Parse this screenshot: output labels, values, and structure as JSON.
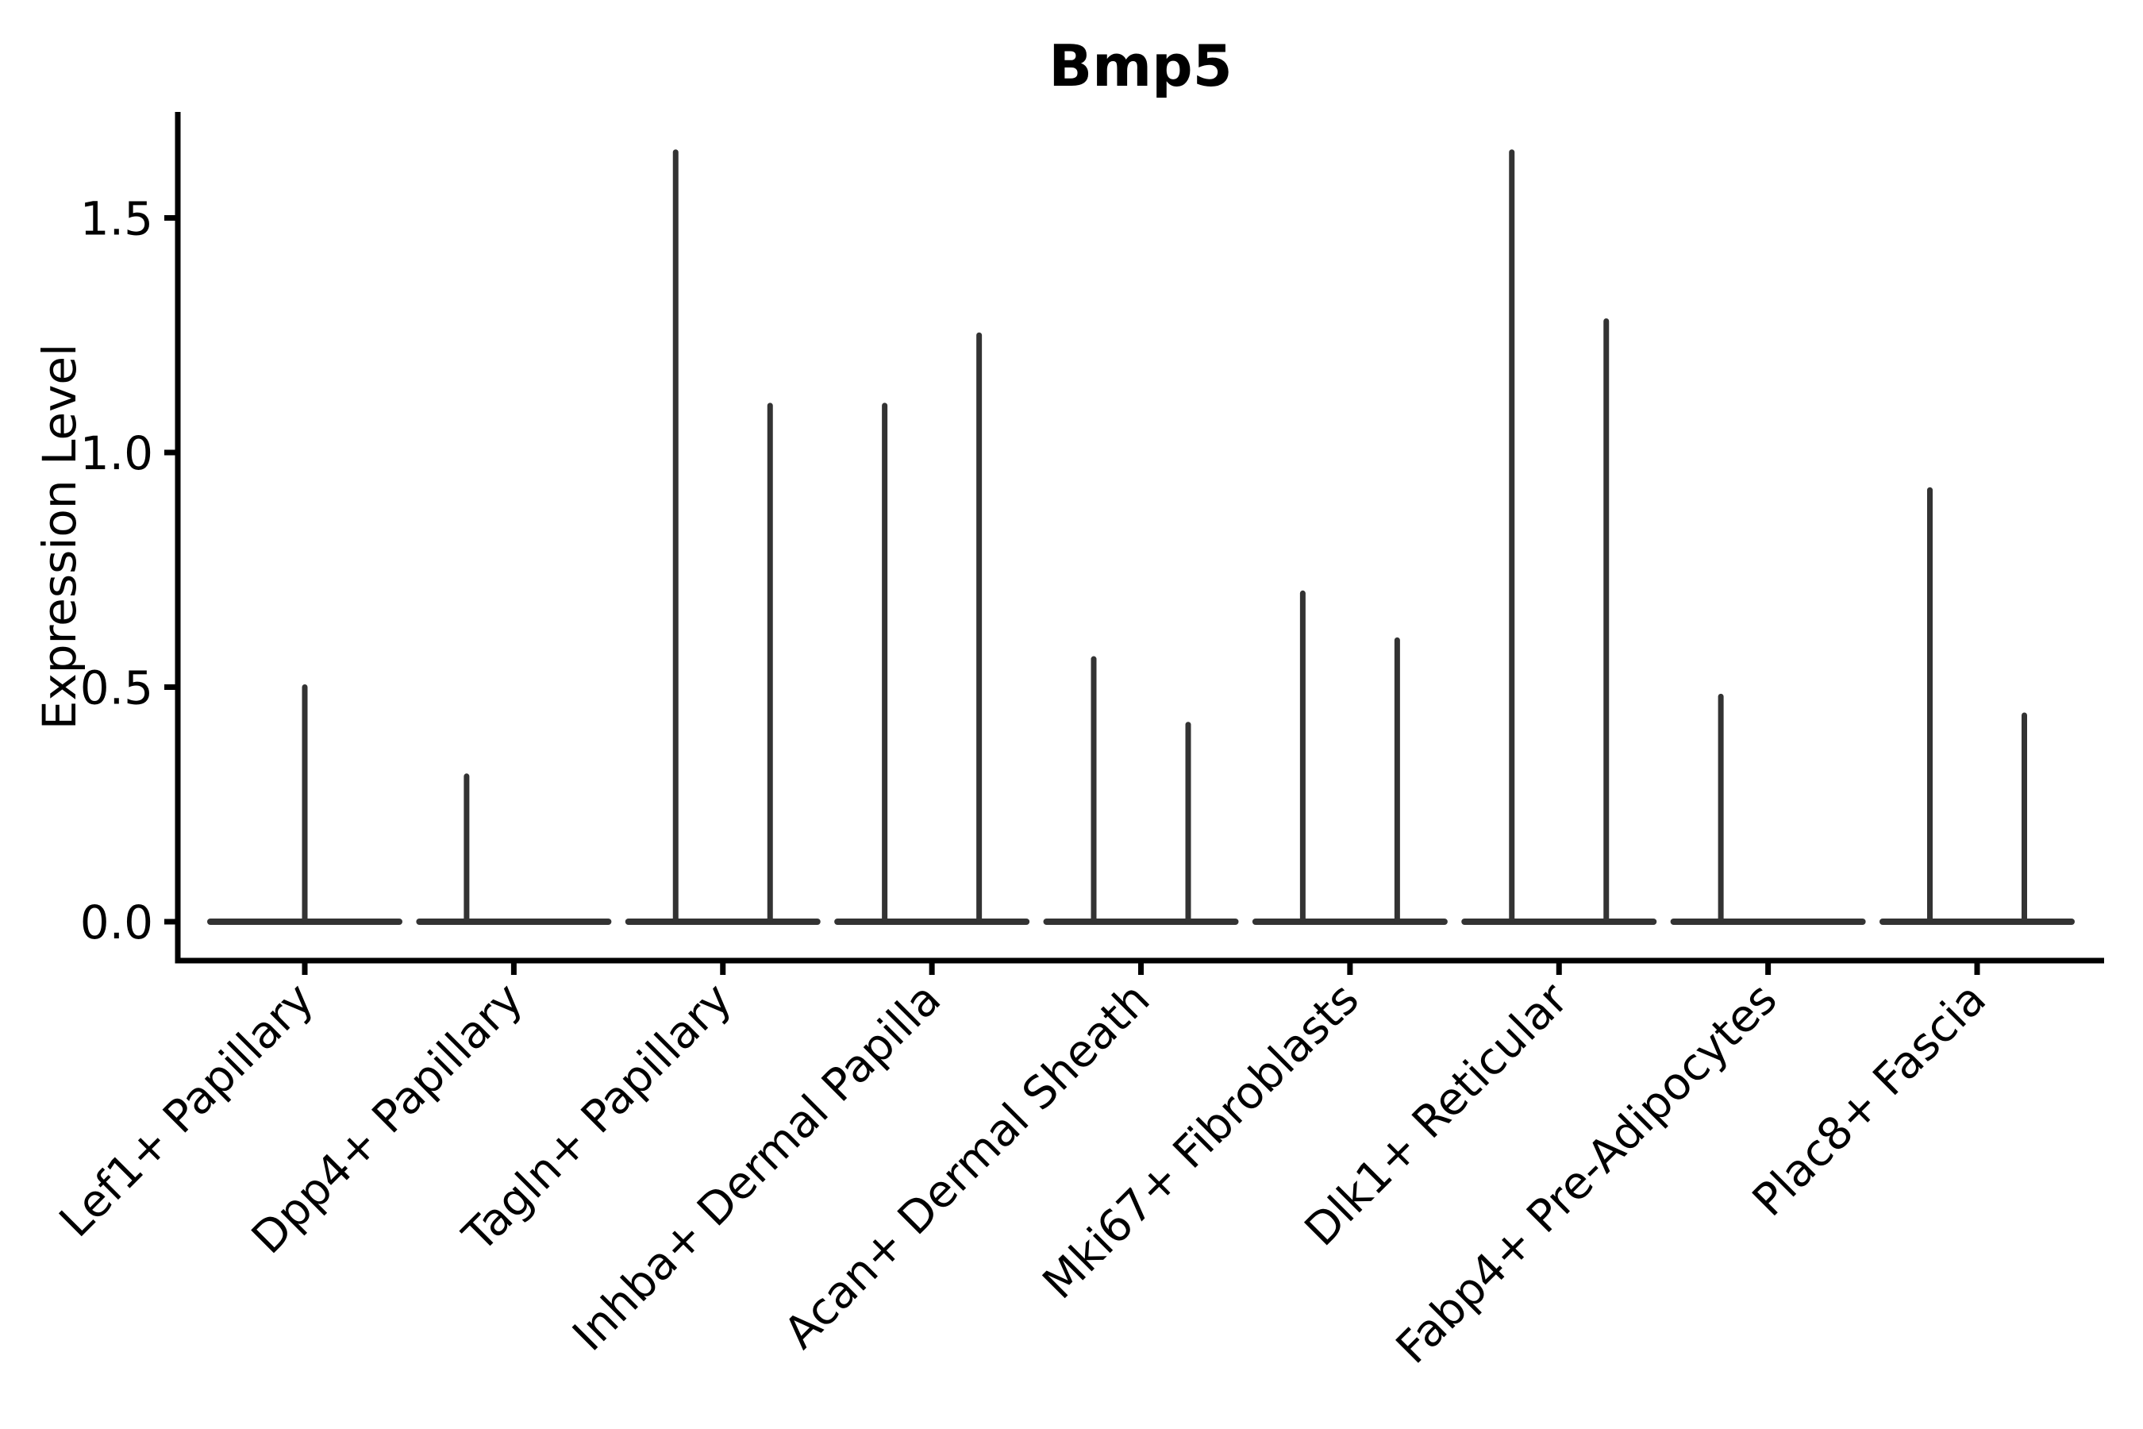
{
  "chart_data": {
    "type": "violin",
    "title": "Bmp5",
    "xlabel": "",
    "ylabel": "Expression Level",
    "ylim": [
      -0.08,
      1.73
    ],
    "grid": false,
    "legend": null,
    "yticks": [
      "0.0",
      "0.5",
      "1.0",
      "1.5"
    ],
    "ytick_values": [
      0.0,
      0.5,
      1.0,
      1.5
    ],
    "note": "Each category shows narrow split violins: a flat density band at expression 0 with a thin spike rising to the maximum expression value. Flat violins (peak 0) have no spike.",
    "categories": [
      {
        "label": "Lef1+ Papillary",
        "violins": [
          {
            "position": "center",
            "peak": 0.5
          }
        ]
      },
      {
        "label": "Dpp4+ Papillary",
        "violins": [
          {
            "position": "left",
            "peak": 0.31
          },
          {
            "position": "right",
            "peak": 0.0
          }
        ]
      },
      {
        "label": "Tagln+ Papillary",
        "violins": [
          {
            "position": "left",
            "peak": 1.64
          },
          {
            "position": "right",
            "peak": 1.1
          }
        ]
      },
      {
        "label": "Inhba+ Dermal Papilla",
        "violins": [
          {
            "position": "left",
            "peak": 1.1
          },
          {
            "position": "right",
            "peak": 1.25
          }
        ]
      },
      {
        "label": "Acan+ Dermal Sheath",
        "violins": [
          {
            "position": "left",
            "peak": 0.56
          },
          {
            "position": "right",
            "peak": 0.42
          }
        ]
      },
      {
        "label": "Mki67+ Fibroblasts",
        "violins": [
          {
            "position": "left",
            "peak": 0.7
          },
          {
            "position": "right",
            "peak": 0.6
          }
        ]
      },
      {
        "label": "Dlk1+ Reticular",
        "violins": [
          {
            "position": "left",
            "peak": 1.64
          },
          {
            "position": "right",
            "peak": 1.28
          }
        ]
      },
      {
        "label": "Fabp4+ Pre-Adipocytes",
        "violins": [
          {
            "position": "left",
            "peak": 0.48
          },
          {
            "position": "right",
            "peak": 0.0
          }
        ]
      },
      {
        "label": "Plac8+ Fascia",
        "violins": [
          {
            "position": "left",
            "peak": 0.92
          },
          {
            "position": "right",
            "peak": 0.44
          }
        ]
      }
    ],
    "colors": {
      "violin": "#333333",
      "axis": "#000000",
      "text": "#000000",
      "background": "#ffffff"
    }
  }
}
